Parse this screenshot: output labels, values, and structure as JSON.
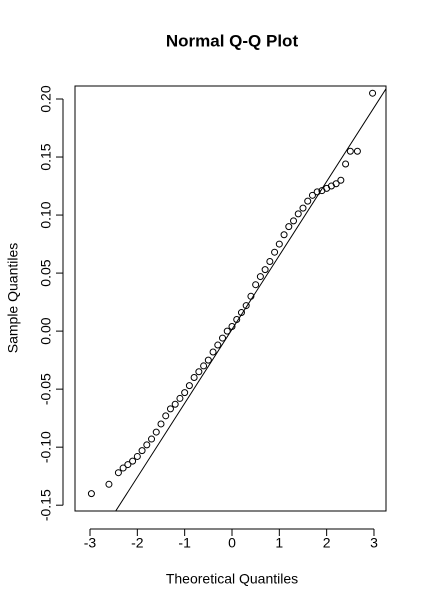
{
  "chart_data": {
    "type": "scatter",
    "title": "Normal Q-Q Plot",
    "xlabel": "Theoretical Quantiles",
    "ylabel": "Sample Quantiles",
    "x": [
      -2.97,
      -2.6,
      -2.4,
      -2.3,
      -2.2,
      -2.1,
      -2.0,
      -1.9,
      -1.8,
      -1.7,
      -1.6,
      -1.5,
      -1.4,
      -1.3,
      -1.2,
      -1.1,
      -1.0,
      -0.9,
      -0.8,
      -0.7,
      -0.6,
      -0.5,
      -0.4,
      -0.3,
      -0.2,
      -0.1,
      0,
      0.1,
      0.2,
      0.3,
      0.4,
      0.5,
      0.6,
      0.7,
      0.8,
      0.9,
      1.0,
      1.1,
      1.2,
      1.3,
      1.4,
      1.5,
      1.6,
      1.7,
      1.8,
      1.9,
      2.0,
      2.1,
      2.2,
      2.3,
      2.4,
      2.5,
      2.65,
      2.97
    ],
    "values": [
      -0.14,
      -0.132,
      -0.122,
      -0.118,
      -0.115,
      -0.112,
      -0.108,
      -0.103,
      -0.098,
      -0.093,
      -0.087,
      -0.08,
      -0.073,
      -0.067,
      -0.063,
      -0.058,
      -0.053,
      -0.047,
      -0.04,
      -0.035,
      -0.03,
      -0.025,
      -0.018,
      -0.012,
      -0.006,
      0.0,
      0.004,
      0.01,
      0.016,
      0.022,
      0.03,
      0.04,
      0.047,
      0.053,
      0.06,
      0.068,
      0.075,
      0.083,
      0.09,
      0.095,
      0.101,
      0.106,
      0.112,
      0.117,
      0.12,
      0.121,
      0.123,
      0.125,
      0.127,
      0.13,
      0.144,
      0.155,
      0.155,
      0.205
    ],
    "color": "#000000",
    "reference_line": {
      "intercept": 0.0015,
      "slope": 0.0637
    },
    "xlim": [
      -3.317,
      3.254
    ],
    "xticks": [
      -3,
      -2,
      -1,
      0,
      1,
      2,
      3
    ],
    "ylim": [
      -0.155,
      0.2112
    ],
    "yticks": [
      {
        "value": -0.15,
        "label": "-0.15"
      },
      {
        "value": -0.1,
        "label": "-0.10"
      },
      {
        "value": -0.05,
        "label": "-0.05"
      },
      {
        "value": 0,
        "label": "0.00"
      },
      {
        "value": 0.05,
        "label": "0.05"
      },
      {
        "value": 0.1,
        "label": "0.10"
      },
      {
        "value": 0.15,
        "label": "0.15"
      },
      {
        "value": 0.2,
        "label": "0.20"
      }
    ]
  }
}
